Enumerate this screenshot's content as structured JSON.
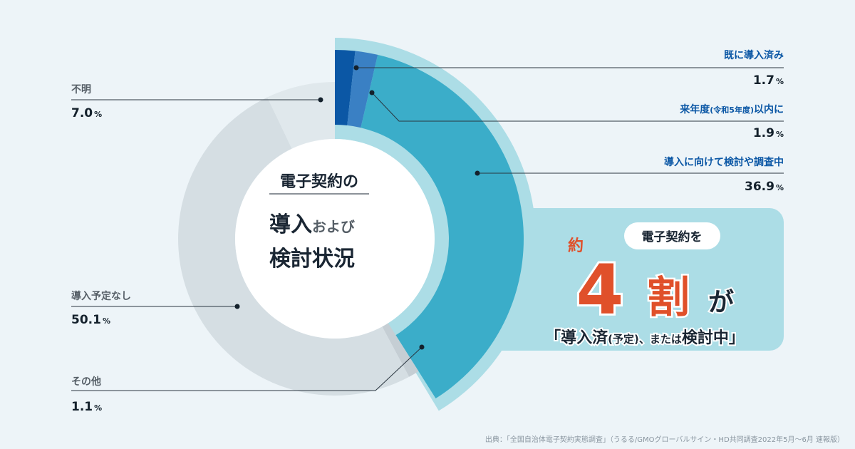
{
  "chart_data": {
    "type": "pie",
    "center_title": "電子契約の",
    "center_line2_big": "導入",
    "center_line2_small": "および",
    "center_line3": "検討状況",
    "slices": [
      {
        "name": "既に導入済み",
        "value": 1.7,
        "value_text": "1.7",
        "unit": "%",
        "color": "#0b57a5"
      },
      {
        "name": "来年度",
        "name_paren": "(令和5年度)",
        "name_suffix": "以内に",
        "value": 1.9,
        "value_text": "1.9",
        "unit": "%",
        "color": "#3a80c4"
      },
      {
        "name": "導入に向けて検討や調査中",
        "value": 36.9,
        "value_text": "36.9",
        "unit": "%",
        "color": "#3badc9"
      },
      {
        "name": "その他",
        "value": 1.1,
        "value_text": "1.1",
        "unit": "%",
        "color": "#c5ced4"
      },
      {
        "name": "導入予定なし",
        "value": 50.1,
        "value_text": "50.1",
        "unit": "%",
        "color": "#d5dee3"
      },
      {
        "name": "不明",
        "value": 7.0,
        "value_text": "7.0",
        "unit": "%",
        "color": "#e0e8ec"
      }
    ]
  },
  "highlight": {
    "pill": "電子契約を",
    "approx": "約",
    "number": "4",
    "suffix": "割",
    "particle": "が",
    "bottom_open": "「導入済",
    "bottom_paren": "(予定)",
    "bottom_mid": "、または",
    "bottom_big": "検討中",
    "bottom_close": "」"
  },
  "source": "出典：「全国自治体電子契約実態調査」（うるる/GMOグローバルサイン・HD共同調査2022年5月〜6月 速報版）",
  "colors": {
    "background": "#edf4f8",
    "highlight_box": "#acdde6",
    "outer_ring": "#acdde6",
    "accent_orange": "#e0502a",
    "label_blue": "#0b57a5",
    "label_gray": "#555e66"
  }
}
